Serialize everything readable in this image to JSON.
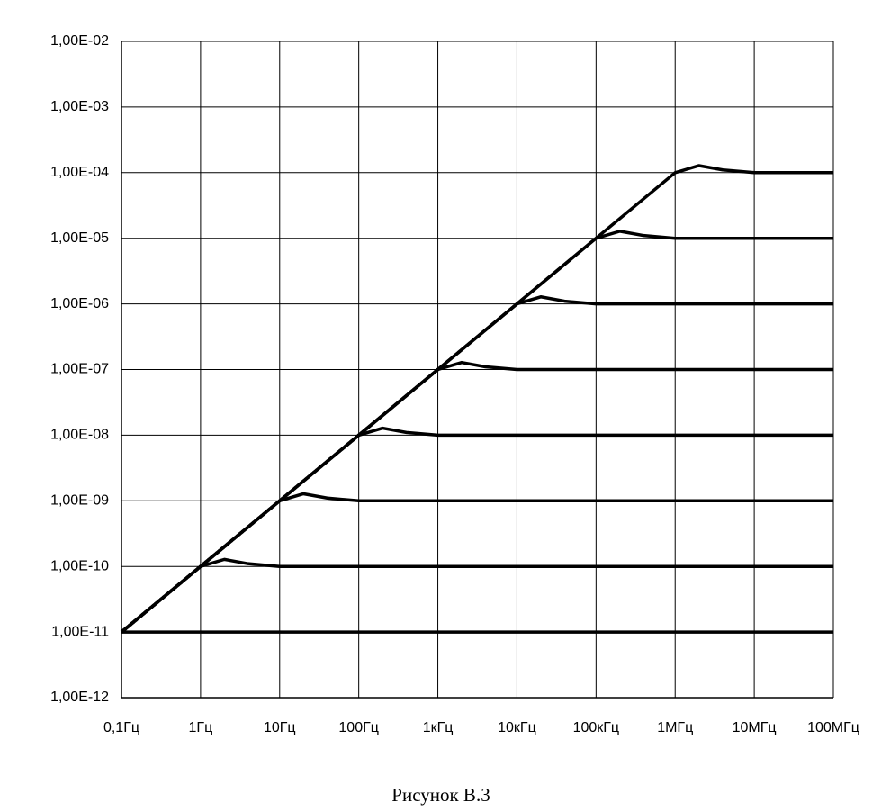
{
  "chart_data": {
    "type": "line",
    "log_x": true,
    "log_y": true,
    "grid": true,
    "caption": "Рисунок В.3",
    "xlim": [
      0.1,
      100000000
    ],
    "ylim": [
      1e-12,
      0.01
    ],
    "xticks": [
      {
        "value": 0.1,
        "label": "0,1Гц"
      },
      {
        "value": 1,
        "label": "1Гц"
      },
      {
        "value": 10,
        "label": "10Гц"
      },
      {
        "value": 100,
        "label": "100Гц"
      },
      {
        "value": 1000,
        "label": "1кГц"
      },
      {
        "value": 10000,
        "label": "10кГц"
      },
      {
        "value": 100000,
        "label": "100кГц"
      },
      {
        "value": 1000000,
        "label": "1МГц"
      },
      {
        "value": 10000000,
        "label": "10МГц"
      },
      {
        "value": 100000000,
        "label": "100МГц"
      }
    ],
    "yticks": [
      {
        "value": 0.01,
        "label": "1,00E-02"
      },
      {
        "value": 0.001,
        "label": "1,00E-03"
      },
      {
        "value": 0.0001,
        "label": "1,00E-04"
      },
      {
        "value": 1e-05,
        "label": "1,00E-05"
      },
      {
        "value": 1e-06,
        "label": "1,00E-06"
      },
      {
        "value": 1e-07,
        "label": "1,00E-07"
      },
      {
        "value": 1e-08,
        "label": "1,00E-08"
      },
      {
        "value": 1e-09,
        "label": "1,00E-09"
      },
      {
        "value": 1e-10,
        "label": "1,00E-10"
      },
      {
        "value": 1e-11,
        "label": "1,00E-11"
      },
      {
        "value": 1e-12,
        "label": "1,00E-12"
      }
    ],
    "series": [
      {
        "color": "#000000",
        "x": [
          0.1,
          100000000
        ],
        "values": [
          1e-11,
          1e-11
        ]
      },
      {
        "color": "#000000",
        "x": [
          0.1,
          1,
          2,
          4,
          10,
          100000000
        ],
        "values": [
          1e-11,
          1e-10,
          1.28e-10,
          1.1e-10,
          1e-10,
          1e-10
        ]
      },
      {
        "color": "#000000",
        "x": [
          0.1,
          10,
          20,
          40,
          100,
          100000000
        ],
        "values": [
          1e-11,
          1e-09,
          1.28e-09,
          1.1e-09,
          1e-09,
          1e-09
        ]
      },
      {
        "color": "#000000",
        "x": [
          0.1,
          100,
          200,
          400,
          1000,
          100000000
        ],
        "values": [
          1e-11,
          1e-08,
          1.28e-08,
          1.1e-08,
          1e-08,
          1e-08
        ]
      },
      {
        "color": "#000000",
        "x": [
          0.1,
          1000,
          2000,
          4000,
          10000,
          100000000
        ],
        "values": [
          1e-11,
          1e-07,
          1.28e-07,
          1.1e-07,
          1e-07,
          1e-07
        ]
      },
      {
        "color": "#000000",
        "x": [
          0.1,
          10000,
          20000,
          40000,
          100000,
          100000000
        ],
        "values": [
          1e-11,
          1e-06,
          1.28e-06,
          1.1e-06,
          1e-06,
          1e-06
        ]
      },
      {
        "color": "#000000",
        "x": [
          0.1,
          100000,
          200000,
          400000,
          1000000,
          100000000
        ],
        "values": [
          1e-11,
          1e-05,
          1.28e-05,
          1.1e-05,
          1e-05,
          1e-05
        ]
      },
      {
        "color": "#000000",
        "x": [
          0.1,
          1000000,
          2000000,
          4000000,
          10000000,
          100000000
        ],
        "values": [
          1e-11,
          0.0001,
          0.000128,
          0.00011,
          0.0001,
          0.0001
        ]
      }
    ]
  }
}
